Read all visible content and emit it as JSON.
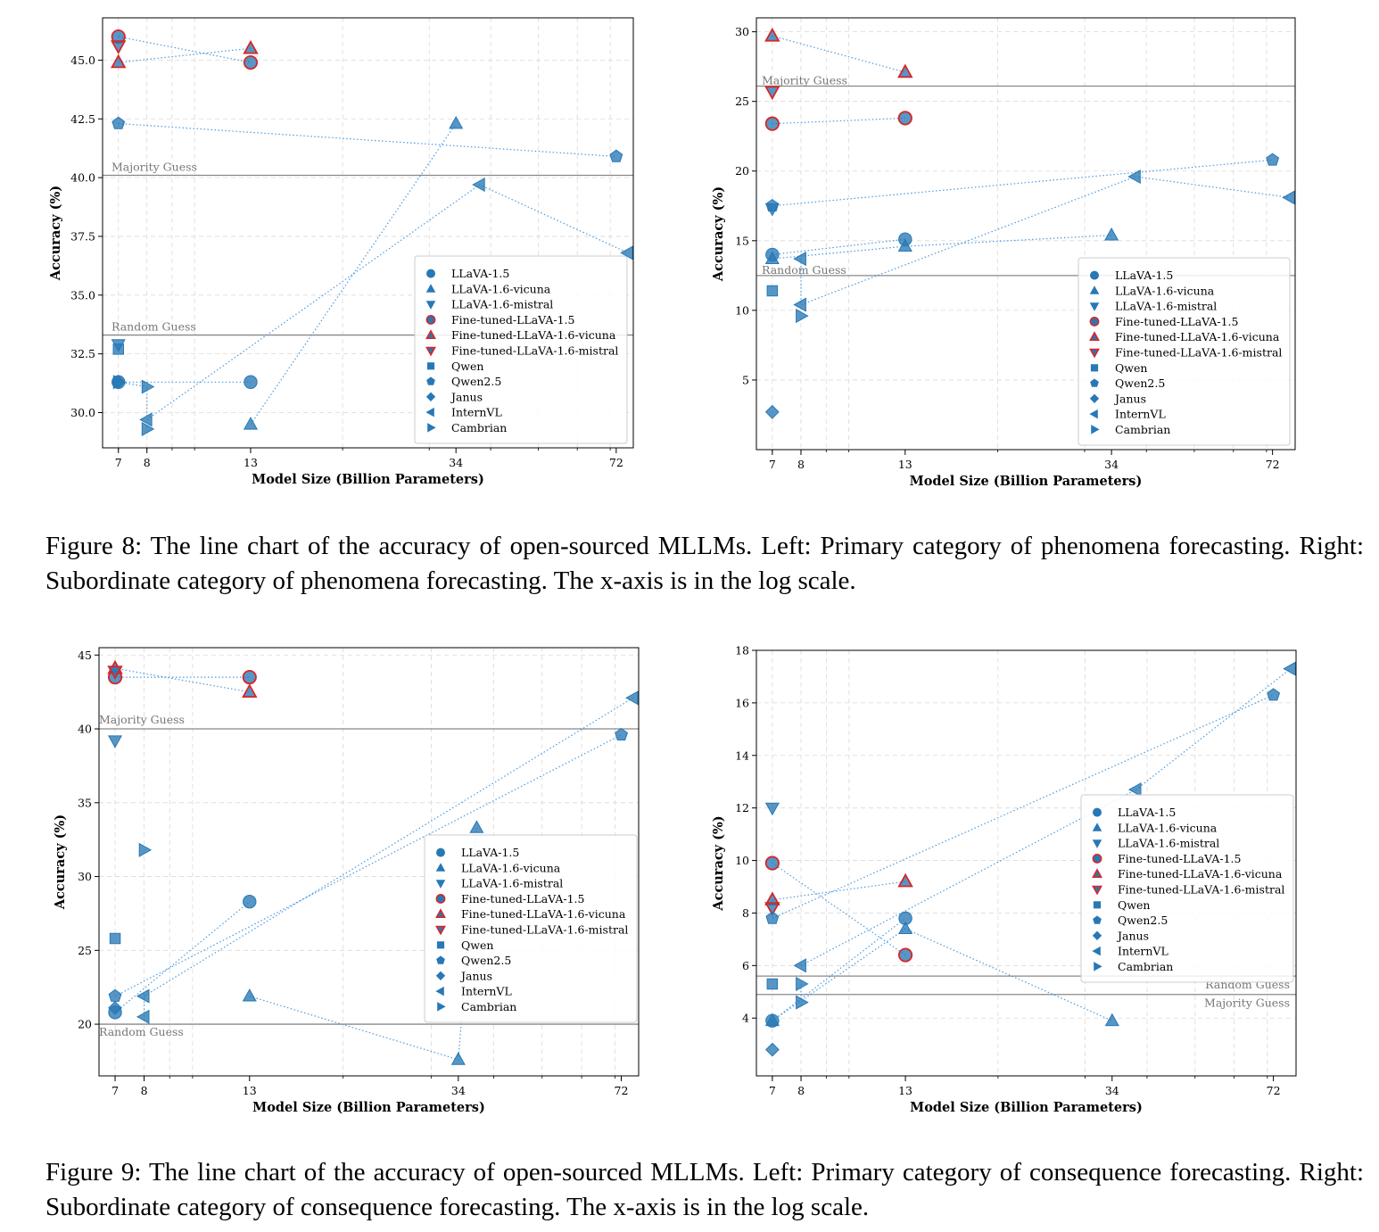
{
  "colors": {
    "series_fill": "#2878b5",
    "finetuned_edge": "#d62728",
    "guide_line": "#888888",
    "reference_text": "#777777",
    "dotted_line": "#4a9be0"
  },
  "captions": {
    "fig8": "Figure 8: The line chart of the accuracy of open-sourced MLLMs. Left: Primary category of phenomena forecasting. Right: Subordinate category of phenomena forecasting. The x-axis is in the log scale.",
    "fig9": "Figure 9: The line chart of the accuracy of open-sourced MLLMs. Left: Primary category of consequence forecasting. Right: Subordinate category of consequence forecasting. The x-axis is in the log scale."
  },
  "chart_data": [
    {
      "type": "line",
      "xscale": "log",
      "xlabel": "Model Size (Billion Parameters)",
      "ylabel": "Accuracy (%)",
      "xlim": [
        6.5,
        78
      ],
      "ylim": [
        28.5,
        46.8
      ],
      "xticks": [
        7,
        8,
        13,
        34,
        72
      ],
      "yticks": [
        "30.0",
        "32.5",
        "35.0",
        "37.5",
        "40.0",
        "42.5",
        "45.0"
      ],
      "legend_position": "lower-right",
      "grid": true,
      "reference_lines": [
        {
          "label": "Majority Guess",
          "y": 40.1
        },
        {
          "label": "Random Guess",
          "y": 33.3
        }
      ],
      "series": [
        {
          "name": "LLaVA-1.5",
          "marker": "circle",
          "finetuned": false,
          "points": [
            [
              7,
              31.3
            ],
            [
              13,
              31.3
            ]
          ]
        },
        {
          "name": "LLaVA-1.6-vicuna",
          "marker": "triangle-up",
          "finetuned": false,
          "points": [
            [
              13,
              29.5
            ],
            [
              34,
              42.3
            ]
          ]
        },
        {
          "name": "LLaVA-1.6-mistral",
          "marker": "triangle-down",
          "finetuned": false,
          "points": [
            [
              7,
              32.9
            ]
          ]
        },
        {
          "name": "Fine-tuned-LLaVA-1.5",
          "marker": "circle",
          "finetuned": true,
          "points": [
            [
              7,
              46.0
            ],
            [
              13,
              44.9
            ]
          ]
        },
        {
          "name": "Fine-tuned-LLaVA-1.6-vicuna",
          "marker": "triangle-up",
          "finetuned": true,
          "points": [
            [
              7,
              44.9
            ],
            [
              13,
              45.5
            ]
          ]
        },
        {
          "name": "Fine-tuned-LLaVA-1.6-mistral",
          "marker": "triangle-down",
          "finetuned": true,
          "points": [
            [
              7,
              45.6
            ]
          ]
        },
        {
          "name": "Qwen",
          "marker": "square",
          "finetuned": false,
          "points": [
            [
              7,
              32.7
            ]
          ]
        },
        {
          "name": "Qwen2.5",
          "marker": "pentagon",
          "finetuned": false,
          "points": [
            [
              7,
              42.3
            ],
            [
              72,
              40.9
            ]
          ]
        },
        {
          "name": "Janus",
          "marker": "diamond",
          "finetuned": false,
          "points": [
            [
              7,
              31.3
            ]
          ]
        },
        {
          "name": "InternVL",
          "marker": "triangle-left",
          "finetuned": false,
          "points": [
            [
              8,
              29.7
            ],
            [
              38,
              39.7
            ],
            [
              76,
              36.8
            ]
          ]
        },
        {
          "name": "Cambrian",
          "marker": "triangle-right",
          "finetuned": false,
          "points": [
            [
              7,
              31.3
            ],
            [
              8,
              31.1
            ],
            [
              8,
              29.3
            ]
          ]
        }
      ]
    },
    {
      "type": "line",
      "xscale": "log",
      "xlabel": "Model Size (Billion Parameters)",
      "ylabel": "Accuracy (%)",
      "xlim": [
        6.5,
        80
      ],
      "ylim": [
        0,
        31
      ],
      "xticks": [
        7,
        8,
        13,
        34,
        72
      ],
      "yticks": [
        "5",
        "10",
        "15",
        "20",
        "25",
        "30"
      ],
      "legend_position": "lower-right",
      "grid": true,
      "reference_lines": [
        {
          "label": "Majority Guess",
          "y": 26.1
        },
        {
          "label": "Random Guess",
          "y": 12.5
        }
      ],
      "series": [
        {
          "name": "LLaVA-1.5",
          "marker": "circle",
          "finetuned": false,
          "points": [
            [
              7,
              14.0
            ],
            [
              13,
              15.1
            ]
          ]
        },
        {
          "name": "LLaVA-1.6-vicuna",
          "marker": "triangle-up",
          "finetuned": false,
          "points": [
            [
              7,
              13.7
            ],
            [
              13,
              14.6
            ],
            [
              34,
              15.4
            ]
          ]
        },
        {
          "name": "LLaVA-1.6-mistral",
          "marker": "triangle-down",
          "finetuned": false,
          "points": [
            [
              7,
              17.3
            ]
          ]
        },
        {
          "name": "Fine-tuned-LLaVA-1.5",
          "marker": "circle",
          "finetuned": true,
          "points": [
            [
              7,
              23.4
            ],
            [
              13,
              23.8
            ]
          ]
        },
        {
          "name": "Fine-tuned-LLaVA-1.6-vicuna",
          "marker": "triangle-up",
          "finetuned": true,
          "points": [
            [
              7,
              29.7
            ],
            [
              13,
              27.1
            ]
          ]
        },
        {
          "name": "Fine-tuned-LLaVA-1.6-mistral",
          "marker": "triangle-down",
          "finetuned": true,
          "points": [
            [
              7,
              25.7
            ]
          ]
        },
        {
          "name": "Qwen",
          "marker": "square",
          "finetuned": false,
          "points": [
            [
              7,
              11.4
            ]
          ]
        },
        {
          "name": "Qwen2.5",
          "marker": "pentagon",
          "finetuned": false,
          "points": [
            [
              7,
              17.5
            ],
            [
              72,
              20.8
            ]
          ]
        },
        {
          "name": "Janus",
          "marker": "diamond",
          "finetuned": false,
          "points": [
            [
              7,
              2.7
            ]
          ]
        },
        {
          "name": "InternVL",
          "marker": "triangle-left",
          "finetuned": false,
          "points": [
            [
              8,
              13.7
            ],
            [
              8,
              10.4
            ],
            [
              38,
              19.6
            ],
            [
              78,
              18.1
            ]
          ]
        },
        {
          "name": "Cambrian",
          "marker": "triangle-right",
          "finetuned": false,
          "points": [
            [
              8,
              9.6
            ]
          ]
        }
      ]
    },
    {
      "type": "line",
      "xscale": "log",
      "xlabel": "Model Size (Billion Parameters)",
      "ylabel": "Accuracy (%)",
      "xlim": [
        6.5,
        78
      ],
      "ylim": [
        16.5,
        45.5
      ],
      "xticks": [
        7,
        8,
        13,
        34,
        72
      ],
      "yticks": [
        "20",
        "25",
        "30",
        "35",
        "40",
        "45"
      ],
      "legend_position": "center-right",
      "grid": true,
      "reference_lines": [
        {
          "label": "Majority Guess",
          "y": 40.0
        },
        {
          "label": "Random Guess",
          "y": 20.0
        }
      ],
      "series": [
        {
          "name": "LLaVA-1.5",
          "marker": "circle",
          "finetuned": false,
          "points": [
            [
              7,
              20.8
            ],
            [
              13,
              28.3
            ]
          ]
        },
        {
          "name": "LLaVA-1.6-vicuna",
          "marker": "triangle-up",
          "finetuned": false,
          "points": [
            [
              13,
              21.9
            ],
            [
              34,
              17.6
            ],
            [
              37,
              33.3
            ]
          ]
        },
        {
          "name": "LLaVA-1.6-mistral",
          "marker": "triangle-down",
          "finetuned": false,
          "points": [
            [
              7,
              39.2
            ]
          ]
        },
        {
          "name": "Fine-tuned-LLaVA-1.5",
          "marker": "circle",
          "finetuned": true,
          "points": [
            [
              7,
              43.5
            ],
            [
              13,
              43.5
            ]
          ]
        },
        {
          "name": "Fine-tuned-LLaVA-1.6-vicuna",
          "marker": "triangle-up",
          "finetuned": true,
          "points": [
            [
              7,
              44.1
            ],
            [
              13,
              42.5
            ]
          ]
        },
        {
          "name": "Fine-tuned-LLaVA-1.6-mistral",
          "marker": "triangle-down",
          "finetuned": true,
          "points": [
            [
              7,
              43.9
            ]
          ]
        },
        {
          "name": "Qwen",
          "marker": "square",
          "finetuned": false,
          "points": [
            [
              7,
              25.8
            ]
          ]
        },
        {
          "name": "Qwen2.5",
          "marker": "pentagon",
          "finetuned": false,
          "points": [
            [
              7,
              21.9
            ],
            [
              72,
              39.6
            ]
          ]
        },
        {
          "name": "Janus",
          "marker": "diamond",
          "finetuned": false,
          "points": [
            [
              7,
              21.1
            ]
          ]
        },
        {
          "name": "InternVL",
          "marker": "triangle-left",
          "finetuned": false,
          "points": [
            [
              8,
              20.5
            ],
            [
              8,
              21.9
            ],
            [
              76,
              42.1
            ]
          ]
        },
        {
          "name": "Cambrian",
          "marker": "triangle-right",
          "finetuned": false,
          "points": [
            [
              8,
              31.8
            ]
          ]
        }
      ]
    },
    {
      "type": "line",
      "xscale": "log",
      "xlabel": "Model Size (Billion Parameters)",
      "ylabel": "Accuracy (%)",
      "xlim": [
        6.5,
        80
      ],
      "ylim": [
        1.8,
        18
      ],
      "xticks": [
        7,
        8,
        13,
        34,
        72
      ],
      "yticks": [
        "4",
        "6",
        "8",
        "10",
        "12",
        "14",
        "16",
        "18"
      ],
      "legend_position": "center-right",
      "grid": true,
      "reference_lines": [
        {
          "label": "Random Guess",
          "y": 5.6
        },
        {
          "label": "Majority Guess",
          "y": 4.9
        }
      ],
      "series": [
        {
          "name": "LLaVA-1.5",
          "marker": "circle",
          "finetuned": false,
          "points": [
            [
              7,
              3.9
            ],
            [
              13,
              7.8
            ]
          ]
        },
        {
          "name": "LLaVA-1.6-vicuna",
          "marker": "triangle-up",
          "finetuned": false,
          "points": [
            [
              7,
              3.9
            ],
            [
              13,
              7.4
            ],
            [
              34,
              3.9
            ]
          ]
        },
        {
          "name": "LLaVA-1.6-mistral",
          "marker": "triangle-down",
          "finetuned": false,
          "points": [
            [
              7,
              12.0
            ]
          ]
        },
        {
          "name": "Fine-tuned-LLaVA-1.5",
          "marker": "circle",
          "finetuned": true,
          "points": [
            [
              7,
              9.9
            ],
            [
              13,
              6.4
            ]
          ]
        },
        {
          "name": "Fine-tuned-LLaVA-1.6-vicuna",
          "marker": "triangle-up",
          "finetuned": true,
          "points": [
            [
              7,
              8.5
            ],
            [
              13,
              9.2
            ]
          ]
        },
        {
          "name": "Fine-tuned-LLaVA-1.6-mistral",
          "marker": "triangle-down",
          "finetuned": true,
          "points": [
            [
              7,
              8.2
            ]
          ]
        },
        {
          "name": "Qwen",
          "marker": "square",
          "finetuned": false,
          "points": [
            [
              7,
              5.3
            ]
          ]
        },
        {
          "name": "Qwen2.5",
          "marker": "pentagon",
          "finetuned": false,
          "points": [
            [
              7,
              7.8
            ],
            [
              72,
              16.3
            ]
          ]
        },
        {
          "name": "Janus",
          "marker": "diamond",
          "finetuned": false,
          "points": [
            [
              7,
              2.8
            ]
          ]
        },
        {
          "name": "InternVL",
          "marker": "triangle-left",
          "finetuned": false,
          "points": [
            [
              8,
              6.0
            ],
            [
              38,
              12.7
            ],
            [
              78,
              17.3
            ]
          ]
        },
        {
          "name": "Cambrian",
          "marker": "triangle-right",
          "finetuned": false,
          "points": [
            [
              8,
              5.3
            ],
            [
              8,
              4.6
            ]
          ]
        }
      ]
    }
  ]
}
